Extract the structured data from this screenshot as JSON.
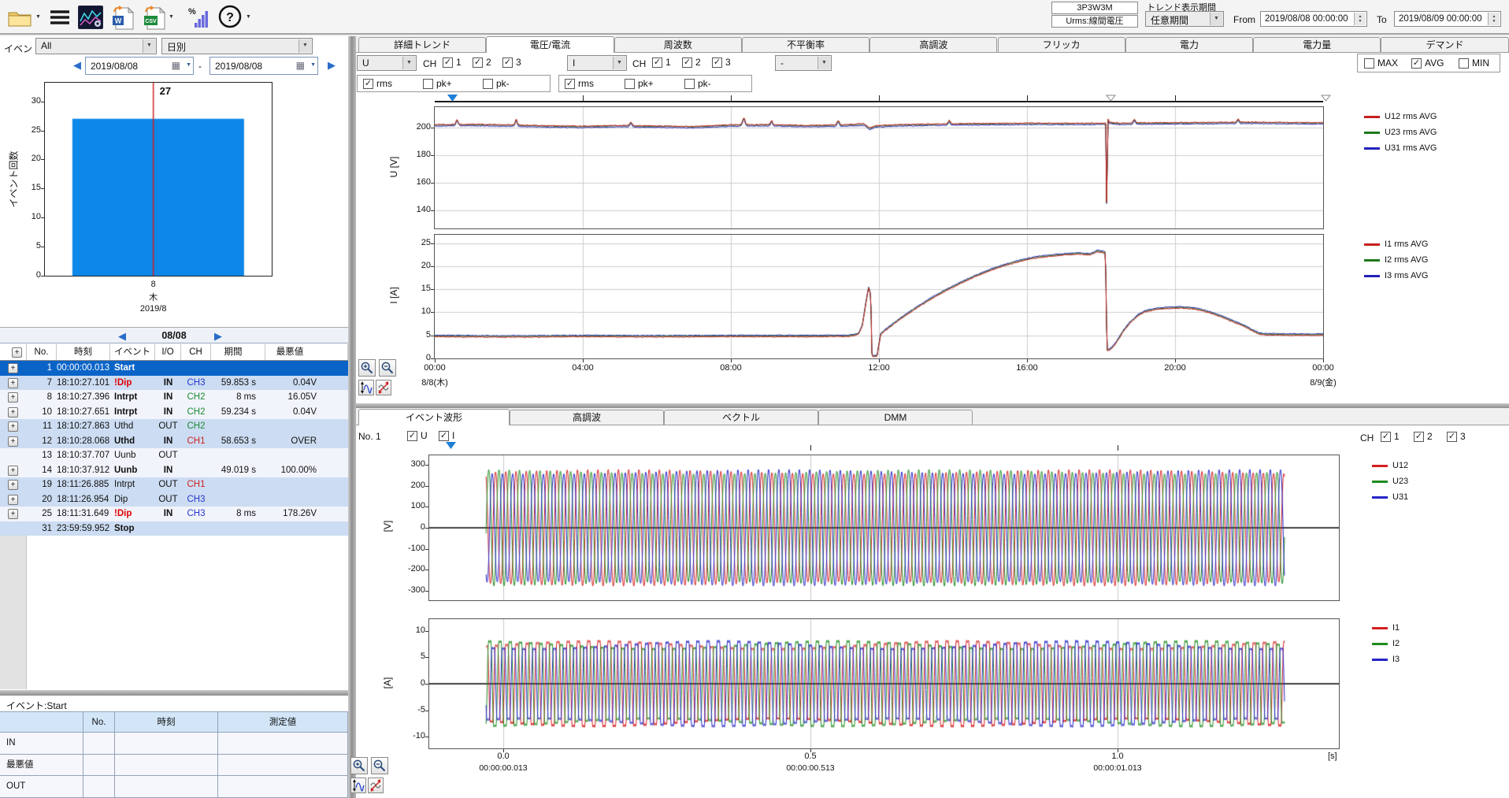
{
  "toolbar": {
    "word_label": "W",
    "csv_label": "CSV",
    "percent_label": "%",
    "help_label": "?"
  },
  "header": {
    "wiring": "3P3W3M",
    "measure": "Urms:線間電圧",
    "trend_period_label": "トレンド表示期間",
    "trend_period_value": "任意期間",
    "from_label": "From",
    "from_value": "2019/08/08 00:00:00",
    "to_label": "To",
    "to_value": "2019/08/09 00:00:00"
  },
  "left": {
    "event_filter_label": "イベント",
    "event_filter_value": "All",
    "group_mode_value": "日別",
    "date_from": "2019/08/08",
    "date_separator": "-",
    "date_to": "2019/08/08",
    "month_nav_label": "08/08",
    "event_table": {
      "columns": [
        "No.",
        "時刻",
        "イベント",
        "I/O",
        "CH",
        "期間",
        "最悪値"
      ],
      "rows": [
        {
          "expand": true,
          "no": "1",
          "time": "00:00:00.013",
          "event": "Start",
          "event_style": "bold",
          "io": "",
          "ch": "",
          "duration": "",
          "worst": "",
          "bg": "selected"
        },
        {
          "expand": true,
          "no": "7",
          "time": "18:10:27.101",
          "event": "!Dip",
          "event_style": "bold-red",
          "io": "IN",
          "ch": "CH3",
          "duration": "59.853 s",
          "worst": "0.04V",
          "bg": "tint"
        },
        {
          "expand": true,
          "no": "8",
          "time": "18:10:27.396",
          "event": "Intrpt",
          "event_style": "bold",
          "io": "IN",
          "ch": "CH2",
          "duration": "8 ms",
          "worst": "16.05V",
          "bg": "plain"
        },
        {
          "expand": true,
          "no": "10",
          "time": "18:10:27.651",
          "event": "Intrpt",
          "event_style": "bold",
          "io": "IN",
          "ch": "CH2",
          "duration": "59.234 s",
          "worst": "0.04V",
          "bg": "plain"
        },
        {
          "expand": true,
          "no": "11",
          "time": "18:10:27.863",
          "event": "Uthd",
          "event_style": "normal",
          "io": "OUT",
          "ch": "CH2",
          "duration": "",
          "worst": "",
          "bg": "tint"
        },
        {
          "expand": true,
          "no": "12",
          "time": "18:10:28.068",
          "event": "Uthd",
          "event_style": "bold",
          "io": "IN",
          "ch": "CH1",
          "duration": "58.653 s",
          "worst": "OVER",
          "bg": "tint"
        },
        {
          "expand": false,
          "no": "13",
          "time": "18:10:37.707",
          "event": "Uunb",
          "event_style": "normal",
          "io": "OUT",
          "ch": "",
          "duration": "",
          "worst": "",
          "bg": "plain"
        },
        {
          "expand": true,
          "no": "14",
          "time": "18:10:37.912",
          "event": "Uunb",
          "event_style": "bold",
          "io": "IN",
          "ch": "",
          "duration": "49.019 s",
          "worst": "100.00%",
          "bg": "plain"
        },
        {
          "expand": true,
          "no": "19",
          "time": "18:11:26.885",
          "event": "Intrpt",
          "event_style": "normal",
          "io": "OUT",
          "ch": "CH1",
          "duration": "",
          "worst": "",
          "bg": "tint"
        },
        {
          "expand": true,
          "no": "20",
          "time": "18:11:26.954",
          "event": "Dip",
          "event_style": "normal",
          "io": "OUT",
          "ch": "CH3",
          "duration": "",
          "worst": "",
          "bg": "tint"
        },
        {
          "expand": true,
          "no": "25",
          "time": "18:11:31.649",
          "event": "!Dip",
          "event_style": "bold-red",
          "io": "IN",
          "ch": "CH3",
          "duration": "8 ms",
          "worst": "178.26V",
          "bg": "plain"
        },
        {
          "expand": false,
          "no": "31",
          "time": "23:59:59.952",
          "event": "Stop",
          "event_style": "bold",
          "io": "",
          "ch": "",
          "duration": "",
          "worst": "",
          "bg": "tint"
        }
      ]
    },
    "event_detail": {
      "title": "イベント:Start",
      "columns": [
        "No.",
        "時刻",
        "測定値"
      ],
      "row_labels": [
        "IN",
        "最悪値",
        "OUT"
      ]
    }
  },
  "right_top": {
    "tabs": [
      {
        "label": "詳細トレンド",
        "active": false
      },
      {
        "label": "電圧/電流",
        "active": true
      },
      {
        "label": "周波数",
        "active": false
      },
      {
        "label": "不平衡率",
        "active": false
      },
      {
        "label": "高調波",
        "active": false
      },
      {
        "label": "フリッカ",
        "active": false
      },
      {
        "label": "電力",
        "active": false
      },
      {
        "label": "電力量",
        "active": false
      },
      {
        "label": "デマンド",
        "active": false
      }
    ],
    "u_source": "U",
    "i_source": "I",
    "extra_source": "-",
    "ch_label": "CH",
    "u_channels": [
      {
        "label": "1",
        "checked": true
      },
      {
        "label": "2",
        "checked": true
      },
      {
        "label": "3",
        "checked": true
      }
    ],
    "i_channels": [
      {
        "label": "1",
        "checked": true
      },
      {
        "label": "2",
        "checked": true
      },
      {
        "label": "3",
        "checked": true
      }
    ],
    "u_metrics": [
      {
        "label": "rms",
        "checked": true
      },
      {
        "label": "pk+",
        "checked": false
      },
      {
        "label": "pk-",
        "checked": false
      }
    ],
    "i_metrics": [
      {
        "label": "rms",
        "checked": true
      },
      {
        "label": "pk+",
        "checked": false
      },
      {
        "label": "pk-",
        "checked": false
      }
    ],
    "stats": [
      {
        "label": "MAX",
        "checked": false
      },
      {
        "label": "AVG",
        "checked": true
      },
      {
        "label": "MIN",
        "checked": false
      }
    ]
  },
  "right_bottom": {
    "tabs": [
      {
        "label": "イベント波形",
        "active": true
      },
      {
        "label": "高調波",
        "active": false
      },
      {
        "label": "ベクトル",
        "active": false
      },
      {
        "label": "DMM",
        "active": false
      }
    ],
    "event_no": "No. 1",
    "u_check": {
      "label": "U",
      "checked": true
    },
    "i_check": {
      "label": "I",
      "checked": true
    },
    "ch_label": "CH",
    "channels": [
      {
        "label": "1",
        "checked": true
      },
      {
        "label": "2",
        "checked": true
      },
      {
        "label": "3",
        "checked": true
      }
    ]
  },
  "colors": {
    "bar_blue": "#0d87e9",
    "selection_blue": "#0a64c8",
    "ch1_red": "#cc2222",
    "ch2_green": "#1a8a33",
    "ch3_blue": "#2437cc",
    "alert_red": "#dd0000"
  },
  "chart_data": [
    {
      "id": "event-histogram",
      "type": "bar",
      "ylabel": "イベント回数",
      "categories": [
        "8"
      ],
      "category_sublabels": [
        "木"
      ],
      "month_label": "2019/8",
      "values": [
        27
      ],
      "value_label": "27",
      "ylim": [
        0,
        33.2
      ],
      "yticks": [
        0,
        5,
        10,
        15,
        20,
        25,
        30
      ],
      "bar_color": "#0d87e9",
      "marker_color": "#cc2222",
      "marker_frac": 0.478,
      "bar_frac": [
        0.121,
        0.878
      ]
    },
    {
      "id": "voltage-trend",
      "type": "line",
      "ylabel": "U  [V]",
      "ylim": [
        127,
        215
      ],
      "yticks": [
        140,
        160,
        180,
        200
      ],
      "x_domain_hours": [
        0,
        24
      ],
      "xgrid_hours": [
        4,
        8,
        12,
        16,
        20
      ],
      "noise": 0.55,
      "series": [
        {
          "name": "U12 rms AVG",
          "color": "#c81e1e",
          "offset": 0
        },
        {
          "name": "U23 rms AVG",
          "color": "#1e7a1e",
          "offset": -0.35
        },
        {
          "name": "U31 rms AVG",
          "color": "#2222bb",
          "offset": -1.1
        }
      ],
      "anchors": [
        [
          0,
          202.3
        ],
        [
          1,
          202.6
        ],
        [
          2,
          202.2
        ],
        [
          3,
          201.6
        ],
        [
          4,
          201.2
        ],
        [
          5,
          201.8
        ],
        [
          6,
          201.4
        ],
        [
          7,
          201.0
        ],
        [
          8,
          202.2
        ],
        [
          9,
          202.4
        ],
        [
          10,
          201.8
        ],
        [
          11,
          202.2
        ],
        [
          11.6,
          203.0
        ],
        [
          11.75,
          199.8
        ],
        [
          11.9,
          201.5
        ],
        [
          12.5,
          202.3
        ],
        [
          13,
          202.6
        ],
        [
          14,
          203.0
        ],
        [
          15,
          203.2
        ],
        [
          16,
          203.4
        ],
        [
          17,
          203.4
        ],
        [
          18.1,
          203.4
        ],
        [
          18.13,
          203.3
        ],
        [
          18.155,
          128
        ],
        [
          18.18,
          206.8
        ],
        [
          18.23,
          204
        ],
        [
          18.5,
          203.4
        ],
        [
          19,
          203.6
        ],
        [
          20,
          203.8
        ],
        [
          21,
          204.0
        ],
        [
          22,
          204.2
        ],
        [
          23,
          203.9
        ],
        [
          24,
          203.8
        ]
      ],
      "spikes": [
        {
          "t": 0.6,
          "dv": 3.5,
          "w": 0.04
        },
        {
          "t": 2.2,
          "dv": 4.2,
          "w": 0.035
        },
        {
          "t": 5.3,
          "dv": 2.6,
          "w": 0.04
        },
        {
          "t": 8.35,
          "dv": 5.0,
          "w": 0.045
        },
        {
          "t": 9.1,
          "dv": 3.0,
          "w": 0.035
        },
        {
          "t": 10.9,
          "dv": 3.2,
          "w": 0.04
        },
        {
          "t": 13.9,
          "dv": 2.6,
          "w": 0.035
        },
        {
          "t": 18.9,
          "dv": 2.8,
          "w": 0.04
        },
        {
          "t": 21.7,
          "dv": 2.4,
          "w": 0.035
        }
      ]
    },
    {
      "id": "current-trend",
      "type": "line",
      "ylabel": "I  [A]",
      "ylim": [
        0,
        26.8
      ],
      "yticks": [
        0,
        5,
        10,
        15,
        20,
        25
      ],
      "x_domain_hours": [
        0,
        24
      ],
      "xgrid_hours": [
        4,
        8,
        12,
        16,
        20
      ],
      "xticks": [
        {
          "hour": 0,
          "label": "00:00"
        },
        {
          "hour": 4,
          "label": "04:00"
        },
        {
          "hour": 8,
          "label": "08:00"
        },
        {
          "hour": 12,
          "label": "12:00"
        },
        {
          "hour": 16,
          "label": "16:00"
        },
        {
          "hour": 20,
          "label": "20:00"
        },
        {
          "hour": 24,
          "label": "00:00"
        }
      ],
      "date_labels": [
        {
          "hour": 0,
          "label": "8/8(木)"
        },
        {
          "hour": 24,
          "label": "8/9(金)"
        }
      ],
      "noise": 0.16,
      "series": [
        {
          "name": "I1 rms AVG",
          "color": "#c81e1e",
          "offset": 0
        },
        {
          "name": "I2 rms AVG",
          "color": "#1e7a1e",
          "offset": 0.15
        },
        {
          "name": "I3 rms AVG",
          "color": "#2222bb",
          "offset": 0.32
        }
      ],
      "anchors": [
        [
          0,
          4.7
        ],
        [
          2,
          4.6
        ],
        [
          4,
          4.7
        ],
        [
          6,
          4.65
        ],
        [
          8,
          4.7
        ],
        [
          10,
          4.7
        ],
        [
          11.2,
          4.75
        ],
        [
          11.45,
          5.2
        ],
        [
          11.55,
          7
        ],
        [
          11.65,
          12
        ],
        [
          11.72,
          15.3
        ],
        [
          11.78,
          13.5
        ],
        [
          11.81,
          0.4
        ],
        [
          11.95,
          0.35
        ],
        [
          11.98,
          2
        ],
        [
          12.05,
          5.2
        ],
        [
          12.3,
          6.8
        ],
        [
          12.6,
          8.6
        ],
        [
          13,
          10.8
        ],
        [
          13.4,
          12.8
        ],
        [
          13.8,
          14.6
        ],
        [
          14.2,
          16.2
        ],
        [
          14.6,
          17.7
        ],
        [
          15,
          19
        ],
        [
          15.4,
          20.1
        ],
        [
          15.8,
          21
        ],
        [
          16.2,
          21.7
        ],
        [
          16.6,
          22.1
        ],
        [
          17,
          22.4
        ],
        [
          17.4,
          22.6
        ],
        [
          17.7,
          22.4
        ],
        [
          17.9,
          23.1
        ],
        [
          18.05,
          22.9
        ],
        [
          18.12,
          22.8
        ],
        [
          18.16,
          1.6
        ],
        [
          18.25,
          1.8
        ],
        [
          18.4,
          3.2
        ],
        [
          18.6,
          5.8
        ],
        [
          18.8,
          7.8
        ],
        [
          19,
          9.2
        ],
        [
          19.2,
          10.1
        ],
        [
          19.5,
          10.6
        ],
        [
          19.8,
          10.8
        ],
        [
          20.1,
          10.9
        ],
        [
          20.4,
          10.8
        ],
        [
          20.7,
          10.4
        ],
        [
          21,
          9.7
        ],
        [
          21.3,
          8.8
        ],
        [
          21.6,
          7.8
        ],
        [
          21.9,
          6.8
        ],
        [
          22.1,
          5.9
        ],
        [
          22.25,
          5.3
        ],
        [
          22.4,
          5.1
        ],
        [
          23,
          5.0
        ],
        [
          24,
          5.0
        ]
      ]
    },
    {
      "id": "voltage-waveform",
      "type": "line",
      "ylabel": "[V]",
      "ylim": [
        -344,
        344
      ],
      "yticks": [
        300,
        200,
        100,
        0,
        -100,
        -200,
        -300
      ],
      "x_domain_s": [
        -0.1205,
        1.3603
      ],
      "xgrid_s": [
        0,
        0.5,
        1.0
      ],
      "data_span_s": [
        -0.028,
        1.272
      ],
      "freq_hz": 60,
      "amplitude": 283,
      "harmonic3": 0.03,
      "am_depth": 0.04,
      "am_freq_hz": 1.3,
      "series": [
        {
          "name": "U12",
          "color": "#d42020",
          "phase_deg": 0
        },
        {
          "name": "U23",
          "color": "#1e8a1e",
          "phase_deg": -120
        },
        {
          "name": "U31",
          "color": "#2525c8",
          "phase_deg": -240
        }
      ]
    },
    {
      "id": "current-waveform",
      "type": "line",
      "ylabel": "[A]",
      "ylim": [
        -12.2,
        12.2
      ],
      "yticks": [
        10,
        5,
        0,
        -5,
        -10
      ],
      "x_domain_s": [
        -0.1205,
        1.3603
      ],
      "xgrid_s": [
        0,
        0.5,
        1.0
      ],
      "data_span_s": [
        -0.028,
        1.272
      ],
      "freq_hz": 60,
      "amplitude": 10.2,
      "harmonic3": 0.18,
      "am_depth": 0.1,
      "am_freq_hz": 1.7,
      "x_unit": "[s]",
      "xticks": [
        {
          "s": 0,
          "label": "0.0",
          "time": "00:00:00.013"
        },
        {
          "s": 0.5,
          "label": "0.5",
          "time": "00:00:00.513"
        },
        {
          "s": 1.0,
          "label": "1.0",
          "time": "00:00:01.013"
        }
      ],
      "series": [
        {
          "name": "I1",
          "color": "#d42020",
          "phase_deg": -35
        },
        {
          "name": "I2",
          "color": "#1e8a1e",
          "phase_deg": -155
        },
        {
          "name": "I3",
          "color": "#2525c8",
          "phase_deg": -275
        }
      ]
    }
  ]
}
